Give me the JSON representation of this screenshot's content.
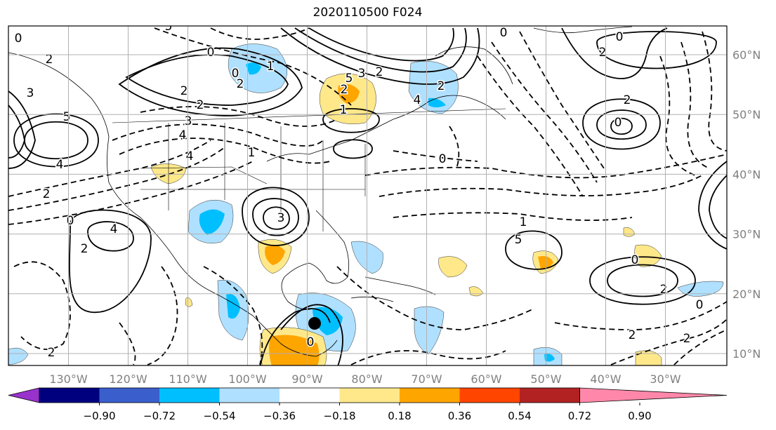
{
  "title": "2020110500 F024",
  "lon_labels": [
    "130°W",
    "120°W",
    "110°W",
    "100°W",
    "90°W",
    "80°W",
    "70°W",
    "60°W",
    "50°W",
    "40°W",
    "30°W"
  ],
  "lat_labels": [
    "60°N",
    "50°N",
    "40°N",
    "30°N",
    "20°N",
    "10°N"
  ],
  "colorbar": {
    "colors": [
      "#9932cc",
      "#00007f",
      "#3a5fcd",
      "#00bfff",
      "#b0e0ff",
      "#ffffff",
      "#ffe88a",
      "#ffa500",
      "#ff4500",
      "#b22222",
      "#ff88aa"
    ],
    "under_color": "#9932cc",
    "over_color": "#ff88aa",
    "tick_labels": [
      "−0.90",
      "−0.72",
      "−0.54",
      "−0.36",
      "−0.18",
      "0.18",
      "0.36",
      "0.54",
      "0.72",
      "0.90"
    ]
  },
  "contour_labels": [
    "0",
    "2",
    "3",
    "5",
    "4",
    "2",
    "0",
    "1",
    "2",
    "3",
    "4",
    "5",
    "0",
    "2",
    "1",
    "4",
    "2",
    "0",
    "4",
    "2",
    "3",
    "5",
    "2",
    "1",
    "0",
    "3",
    "2",
    "2",
    "4",
    "0",
    "0",
    "2",
    "2",
    "0",
    "1",
    "5",
    "0",
    "2",
    "0",
    "2",
    "2",
    "0",
    "2"
  ],
  "colors": {
    "grid": "#b0b0b0",
    "tick_label": "#808080",
    "contour": "#000000"
  }
}
